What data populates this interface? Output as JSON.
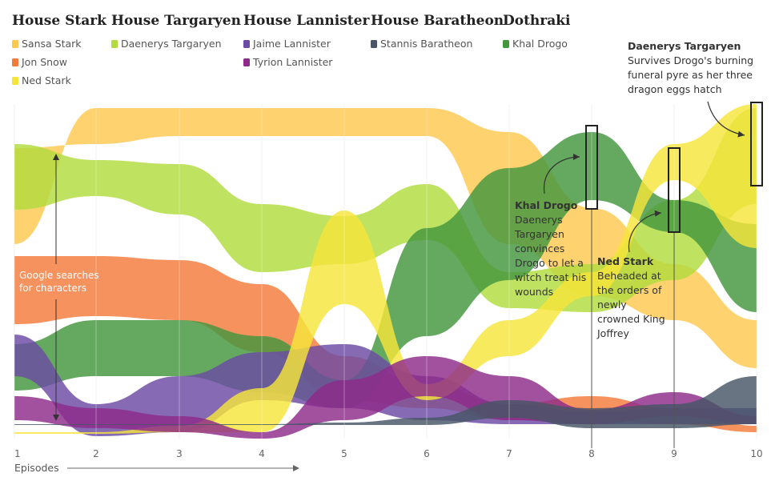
{
  "chart_data": {
    "type": "area",
    "title": "",
    "x": [
      1,
      2,
      3,
      4,
      5,
      6,
      7,
      8,
      9,
      10
    ],
    "xlabel": "Episodes",
    "ylabel": "Google searches for characters",
    "houses": [
      {
        "name": "House Stark",
        "members": [
          "Sansa Stark",
          "Jon Snow",
          "Ned Stark"
        ]
      },
      {
        "name": "House Targaryen",
        "members": [
          "Daenerys Targaryen"
        ]
      },
      {
        "name": "House Lannister",
        "members": [
          "Jaime Lannister",
          "Tyrion Lannister"
        ]
      },
      {
        "name": "House Baratheon",
        "members": [
          "Stannis Baratheon"
        ]
      },
      {
        "name": "Dothraki",
        "members": [
          "Khal Drogo"
        ]
      }
    ],
    "series": [
      {
        "name": "Sansa Stark",
        "color": "#fdc84f",
        "values": [
          12,
          24,
          24,
          24,
          24,
          24,
          20,
          14,
          10,
          10
        ],
        "center": [
          235,
          150,
          145,
          150,
          170,
          205,
          300,
          405,
          400,
          425
        ],
        "width": [
          130,
          8,
          10,
          10,
          10,
          12,
          14,
          18,
          18,
          18
        ]
      },
      {
        "name": "Jon Snow",
        "color": "#f47a3a",
        "values": [
          14,
          14,
          14,
          6,
          4,
          2,
          2,
          2,
          2,
          1
        ],
        "center": [
          350,
          355,
          370,
          410,
          490,
          515,
          520,
          510,
          525,
          538
        ],
        "width": [
          12,
          12,
          12,
          8,
          4,
          4,
          4,
          3,
          3,
          2
        ]
      },
      {
        "name": "Ned Stark",
        "color": "#f5e53a",
        "values": [
          1,
          1,
          2,
          4,
          10,
          3,
          6,
          8,
          18,
          10
        ],
        "center": [
          540,
          540,
          535,
          510,
          320,
          490,
          420,
          360,
          220,
          250
        ],
        "width": [
          1,
          1,
          2,
          4,
          10,
          3,
          6,
          8,
          18,
          10
        ]
      },
      {
        "name": "Daenerys Targaryen",
        "color": "#b2dc3e",
        "values": [
          10,
          12,
          10,
          10,
          8,
          10,
          10,
          10,
          12,
          16
        ],
        "center": [
          230,
          215,
          230,
          295,
          300,
          275,
          370,
          355,
          300,
          200
        ],
        "width": [
          10,
          12,
          10,
          10,
          8,
          10,
          10,
          10,
          12,
          16
        ]
      },
      {
        "name": "Jaime Lannister",
        "color": "#6b4ba3",
        "values": [
          3,
          2,
          3,
          8,
          6,
          3,
          2,
          1,
          1,
          1
        ],
        "center": [
          445,
          520,
          505,
          460,
          470,
          500,
          520,
          525,
          520,
          520
        ],
        "width": [
          3,
          2,
          3,
          8,
          6,
          3,
          2,
          1,
          1,
          1
        ]
      },
      {
        "name": "Tyrion Lannister",
        "color": "#8e2b8a",
        "values": [
          2,
          1,
          1,
          1,
          3,
          6,
          3,
          1,
          4,
          1
        ],
        "center": [
          510,
          520,
          540,
          540,
          500,
          470,
          500,
          520,
          505,
          520
        ],
        "width": [
          2,
          1,
          1,
          1,
          3,
          6,
          3,
          1,
          4,
          1
        ]
      },
      {
        "name": "Stannis Baratheon",
        "color": "#475567",
        "values": [
          0,
          0,
          0,
          0,
          0.5,
          0.5,
          1,
          1,
          2,
          5
        ],
        "center": [
          530,
          530,
          530,
          530,
          528,
          525,
          505,
          520,
          520,
          500
        ],
        "width": [
          0,
          0,
          0,
          0,
          0.5,
          0.5,
          1,
          1,
          2,
          5
        ]
      },
      {
        "name": "Khal Drogo",
        "color": "#43963e",
        "values": [
          8,
          6,
          8,
          6,
          2,
          8,
          14,
          14,
          14,
          10
        ],
        "center": [
          445,
          440,
          430,
          450,
          490,
          355,
          230,
          205,
          260,
          320
        ],
        "width": [
          8,
          6,
          8,
          6,
          2,
          8,
          14,
          14,
          14,
          10
        ]
      }
    ],
    "annotations": [
      {
        "episode": 8,
        "title": "Khal Drogo",
        "lines": [
          "Daenerys",
          "Targaryen",
          "convinces",
          "Drogo to let a",
          "witch treat his",
          "wounds"
        ]
      },
      {
        "episode": 9,
        "title": "Ned Stark",
        "lines": [
          "Beheaded at",
          "the orders of",
          "newly",
          "crowned King",
          "Joffrey"
        ]
      },
      {
        "episode": 10,
        "title": "Daenerys Targaryen",
        "lines": [
          "Survives Drogo's burning",
          "funeral pyre as her three",
          "dragon eggs hatch"
        ]
      }
    ],
    "yaxis_note": [
      "Google searches",
      "for characters"
    ],
    "grid": true
  }
}
